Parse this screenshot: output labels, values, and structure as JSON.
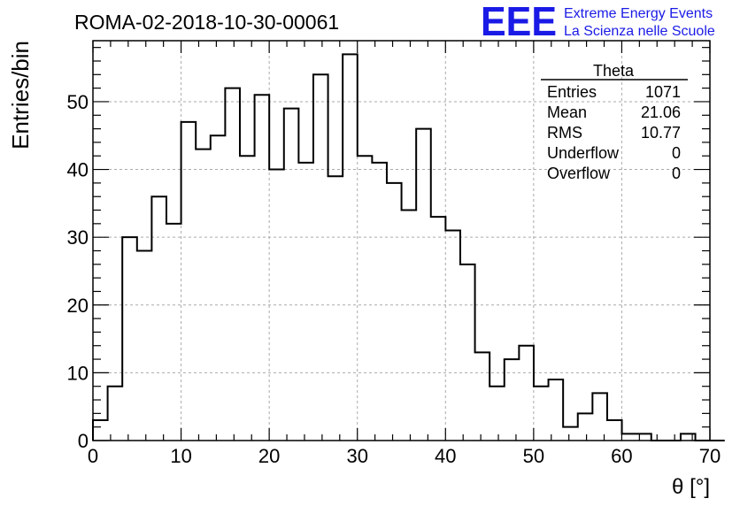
{
  "chart_data": {
    "type": "bar",
    "title": "ROMA-02-2018-10-30-00061",
    "xlabel": "θ [°]",
    "ylabel": "Entries/bin",
    "xlim": [
      0,
      70
    ],
    "ylim": [
      0,
      59
    ],
    "grid": true,
    "bin_width": 1.667,
    "x_ticks": [
      "0",
      "10",
      "20",
      "30",
      "40",
      "50",
      "60",
      "70"
    ],
    "y_ticks": [
      "0",
      "10",
      "20",
      "30",
      "40",
      "50"
    ],
    "x_tick_values": [
      0,
      10,
      20,
      30,
      40,
      50,
      60,
      70
    ],
    "y_tick_values": [
      0,
      10,
      20,
      30,
      40,
      50
    ],
    "values": [
      3,
      8,
      30,
      28,
      36,
      32,
      47,
      43,
      45,
      52,
      42,
      51,
      40,
      49,
      41,
      54,
      39,
      57,
      42,
      41,
      38,
      34,
      46,
      33,
      31,
      26,
      13,
      8,
      12,
      14,
      8,
      9,
      2,
      4,
      7,
      3,
      1,
      1,
      0,
      0,
      1,
      0,
      0,
      0
    ],
    "series": [
      {
        "values": [
          3,
          8,
          30,
          28,
          36,
          32,
          47,
          43,
          45,
          52,
          42,
          51,
          40,
          49,
          41,
          54,
          39,
          57,
          42,
          41,
          38,
          34,
          46,
          33,
          31,
          26,
          13,
          8,
          12,
          14,
          8,
          9,
          2,
          4,
          7,
          3,
          1,
          1,
          0,
          0,
          1,
          0,
          0,
          0
        ]
      }
    ]
  },
  "stats_box": {
    "title": "Theta",
    "rows": [
      {
        "label": "Entries",
        "value": "1071"
      },
      {
        "label": "Mean",
        "value": "21.06"
      },
      {
        "label": "RMS",
        "value": "10.77"
      },
      {
        "label": "Underflow",
        "value": "0"
      },
      {
        "label": "Overflow",
        "value": "0"
      }
    ]
  },
  "logo": {
    "mark": "EEE",
    "line1": "Extreme Energy Events",
    "line2": "La Scienza nelle Scuole",
    "color": "#1a1ae6"
  }
}
